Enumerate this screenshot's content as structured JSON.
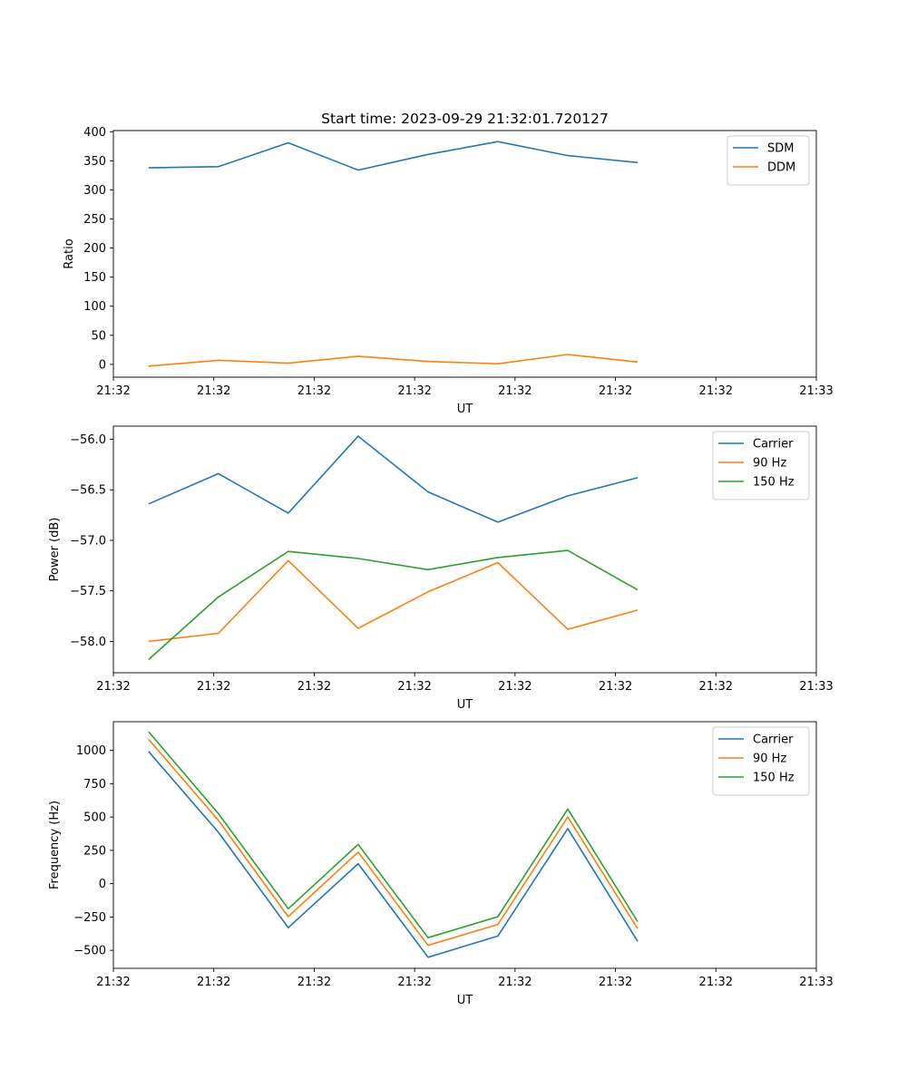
{
  "figure_title": "Start time: 2023-09-29 21:32:01.720127",
  "colors": {
    "blue": "#1f77b4",
    "orange": "#ff7f0e",
    "green": "#2ca02c"
  },
  "chart_data": [
    {
      "type": "line",
      "id": "ratio",
      "title": "Start time: 2023-09-29 21:32:01.720127",
      "xlabel": "UT",
      "ylabel": "Ratio",
      "x_tick_labels": [
        "21:32",
        "21:32",
        "21:32",
        "21:32",
        "21:32",
        "21:32",
        "21:32",
        "21:33"
      ],
      "xlim": [
        -0.1,
        1.1
      ],
      "x": [
        0,
        0.142857,
        0.285714,
        0.428571,
        0.571429,
        0.714286,
        0.857143,
        1.0
      ],
      "ylim": [
        -22,
        402
      ],
      "yticks": [
        0,
        50,
        100,
        150,
        200,
        250,
        300,
        350,
        400
      ],
      "y_tick_labels": [
        "0",
        "50",
        "100",
        "150",
        "200",
        "250",
        "300",
        "350",
        "400"
      ],
      "legend_loc": "upper right",
      "series": [
        {
          "name": "SDM",
          "color": "#1f77b4",
          "values": [
            338,
            340,
            381,
            334,
            361,
            383,
            359,
            347
          ]
        },
        {
          "name": "DDM",
          "color": "#ff7f0e",
          "values": [
            -3,
            7,
            2,
            14,
            5,
            1,
            17,
            4
          ]
        }
      ]
    },
    {
      "type": "line",
      "id": "power",
      "title": "",
      "xlabel": "UT",
      "ylabel": "Power (dB)",
      "x_tick_labels": [
        "21:32",
        "21:32",
        "21:32",
        "21:32",
        "21:32",
        "21:32",
        "21:32",
        "21:33"
      ],
      "xlim": [
        -0.1,
        1.1
      ],
      "x": [
        0,
        0.142857,
        0.285714,
        0.428571,
        0.571429,
        0.714286,
        0.857143,
        1.0
      ],
      "ylim": [
        -58.31,
        -55.87
      ],
      "yticks": [
        -58.0,
        -57.5,
        -57.0,
        -56.5,
        -56.0
      ],
      "y_tick_labels": [
        "−58.0",
        "−57.5",
        "−57.0",
        "−56.5",
        "−56.0"
      ],
      "legend_loc": "upper right",
      "series": [
        {
          "name": "Carrier",
          "color": "#1f77b4",
          "values": [
            -56.64,
            -56.34,
            -56.73,
            -55.97,
            -56.52,
            -56.82,
            -56.56,
            -56.38
          ]
        },
        {
          "name": "90 Hz",
          "color": "#ff7f0e",
          "values": [
            -58.0,
            -57.92,
            -57.2,
            -57.87,
            -57.51,
            -57.22,
            -57.88,
            -57.69
          ]
        },
        {
          "name": "150 Hz",
          "color": "#2ca02c",
          "values": [
            -58.18,
            -57.56,
            -57.11,
            -57.18,
            -57.29,
            -57.17,
            -57.1,
            -57.49
          ]
        }
      ]
    },
    {
      "type": "line",
      "id": "frequency",
      "title": "",
      "xlabel": "UT",
      "ylabel": "Frequency (Hz)",
      "x_tick_labels": [
        "21:32",
        "21:32",
        "21:32",
        "21:32",
        "21:32",
        "21:32",
        "21:32",
        "21:33"
      ],
      "xlim": [
        -0.1,
        1.1
      ],
      "x": [
        0,
        0.142857,
        0.285714,
        0.428571,
        0.571429,
        0.714286,
        0.857143,
        1.0
      ],
      "ylim": [
        -635,
        1215
      ],
      "yticks": [
        -500,
        -250,
        0,
        250,
        500,
        750,
        1000
      ],
      "y_tick_labels": [
        "−500",
        "−250",
        "0",
        "250",
        "500",
        "750",
        "1000"
      ],
      "legend_loc": "upper right",
      "series": [
        {
          "name": "Carrier",
          "color": "#1f77b4",
          "values": [
            992,
            385,
            -330,
            150,
            -552,
            -393,
            413,
            -432
          ]
        },
        {
          "name": "90 Hz",
          "color": "#ff7f0e",
          "values": [
            1083,
            475,
            -247,
            237,
            -463,
            -306,
            500,
            -337
          ]
        },
        {
          "name": "150 Hz",
          "color": "#2ca02c",
          "values": [
            1140,
            525,
            -188,
            295,
            -405,
            -248,
            560,
            -285
          ]
        }
      ]
    }
  ]
}
